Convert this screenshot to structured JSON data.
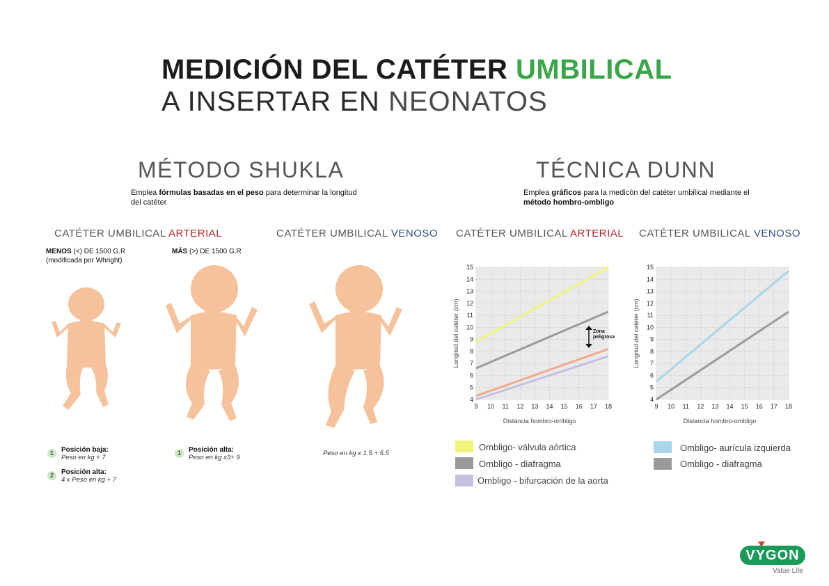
{
  "header": {
    "title_part1": "MEDICIÓN DEL CATÉTER ",
    "title_part2": "UMBILICAL",
    "subtitle_part1": "A INSERTAR EN ",
    "subtitle_part2": "NEONATOS"
  },
  "shukla": {
    "title": "MÉTODO SHUKLA",
    "desc_1": "Emplea ",
    "desc_bold": "fórmulas basadas en el peso",
    "desc_2": " para determinar la longitud del catéter",
    "arterial_label": "CATÉTER UMBILICAL ",
    "arterial_highlight": "ARTERIAL",
    "venoso_label": "CATÉTER UMBILICAL ",
    "venoso_highlight": "VENOSO",
    "menos_bold": "MENOS",
    "menos_rest": " (<) DE 1500 G.R",
    "menos_note": "(modificada por Whright)",
    "mas_bold": "MÁS",
    "mas_rest": " (>) DE 1500 G.R",
    "pos1_num": "1",
    "pos1_title": "Posición baja:",
    "pos1_formula": "Peso en kg + 7",
    "pos2_num": "2",
    "pos2_title": "Posición alta:",
    "pos2_formula": "4 x Peso en kg + 7",
    "pos3_num": "1",
    "pos3_title": "Posición alta:",
    "pos3_formula": "Peso en kg x3+ 9",
    "venoso_formula": "Peso en kg x 1.5 + 5.5"
  },
  "dunn": {
    "title": "TÉCNICA DUNN",
    "desc_1": "Emplea ",
    "desc_bold1": "gráficos",
    "desc_2": " para la medicón del catéter umbilical mediante el ",
    "desc_bold2": "método hombro-ombligo",
    "arterial_label": "CATÉTER UMBILICAL ",
    "arterial_highlight": "ARTERIAL",
    "venoso_label": "CATÉTER UMBILICAL ",
    "venoso_highlight": "VENOSO",
    "zona_line1": "Zona",
    "zona_line2": "peligrosa"
  },
  "legend_arterial": [
    {
      "label": "Ombligo- válvula aórtica",
      "color": "#eef57a"
    },
    {
      "label": "Ombligo - diafragma",
      "color": "#9a9a9a"
    },
    {
      "label": "Ombligo - bifurcación de la aorta",
      "color": "#c5bfe0"
    }
  ],
  "legend_venoso": [
    {
      "label": "Ombligo- aurícula izquierda",
      "color": "#a8d6ea"
    },
    {
      "label": "Ombligo - diafragma",
      "color": "#9a9a9a"
    }
  ],
  "chart_data": [
    {
      "type": "line",
      "xlabel": "Distancia hombro-ombligo",
      "ylabel": "Longitud del catéter (cm)",
      "xlim": [
        9,
        18
      ],
      "ylim": [
        4,
        15
      ],
      "x_ticks": [
        9,
        10,
        11,
        12,
        13,
        14,
        15,
        16,
        17,
        18
      ],
      "y_ticks": [
        4,
        5,
        6,
        7,
        8,
        9,
        10,
        11,
        12,
        13,
        14,
        15
      ],
      "grid": true,
      "series": [
        {
          "name": "Ombligo- válvula aórtica",
          "color": "#eef57a",
          "x": [
            9,
            18
          ],
          "y": [
            8.8,
            15
          ]
        },
        {
          "name": "Ombligo - diafragma",
          "color": "#9a9a9a",
          "x": [
            9,
            18
          ],
          "y": [
            6.6,
            11.3
          ]
        },
        {
          "name": "",
          "color": "#f2a98a",
          "x": [
            9,
            18
          ],
          "y": [
            4.3,
            8.2
          ]
        },
        {
          "name": "Ombligo - bifurcación de la aorta",
          "color": "#c5bfe0",
          "x": [
            9,
            18
          ],
          "y": [
            4.0,
            7.6
          ]
        }
      ]
    },
    {
      "type": "line",
      "xlabel": "Distancia hombro-ombligo",
      "ylabel": "Longitud del catéter (cm)",
      "xlim": [
        9,
        18
      ],
      "ylim": [
        4,
        15
      ],
      "x_ticks": [
        9,
        10,
        11,
        12,
        13,
        14,
        15,
        16,
        17,
        18
      ],
      "y_ticks": [
        4,
        5,
        6,
        7,
        8,
        9,
        10,
        11,
        12,
        13,
        14,
        15
      ],
      "grid": true,
      "series": [
        {
          "name": "Ombligo- aurícula izquierda",
          "color": "#a8d6ea",
          "x": [
            9,
            18
          ],
          "y": [
            5.5,
            14.7
          ]
        },
        {
          "name": "Ombligo - diafragma",
          "color": "#9a9a9a",
          "x": [
            9,
            18
          ],
          "y": [
            4.0,
            11.3
          ]
        }
      ]
    }
  ],
  "brand": {
    "logo": "VYGON",
    "tagline": "Value Life"
  }
}
